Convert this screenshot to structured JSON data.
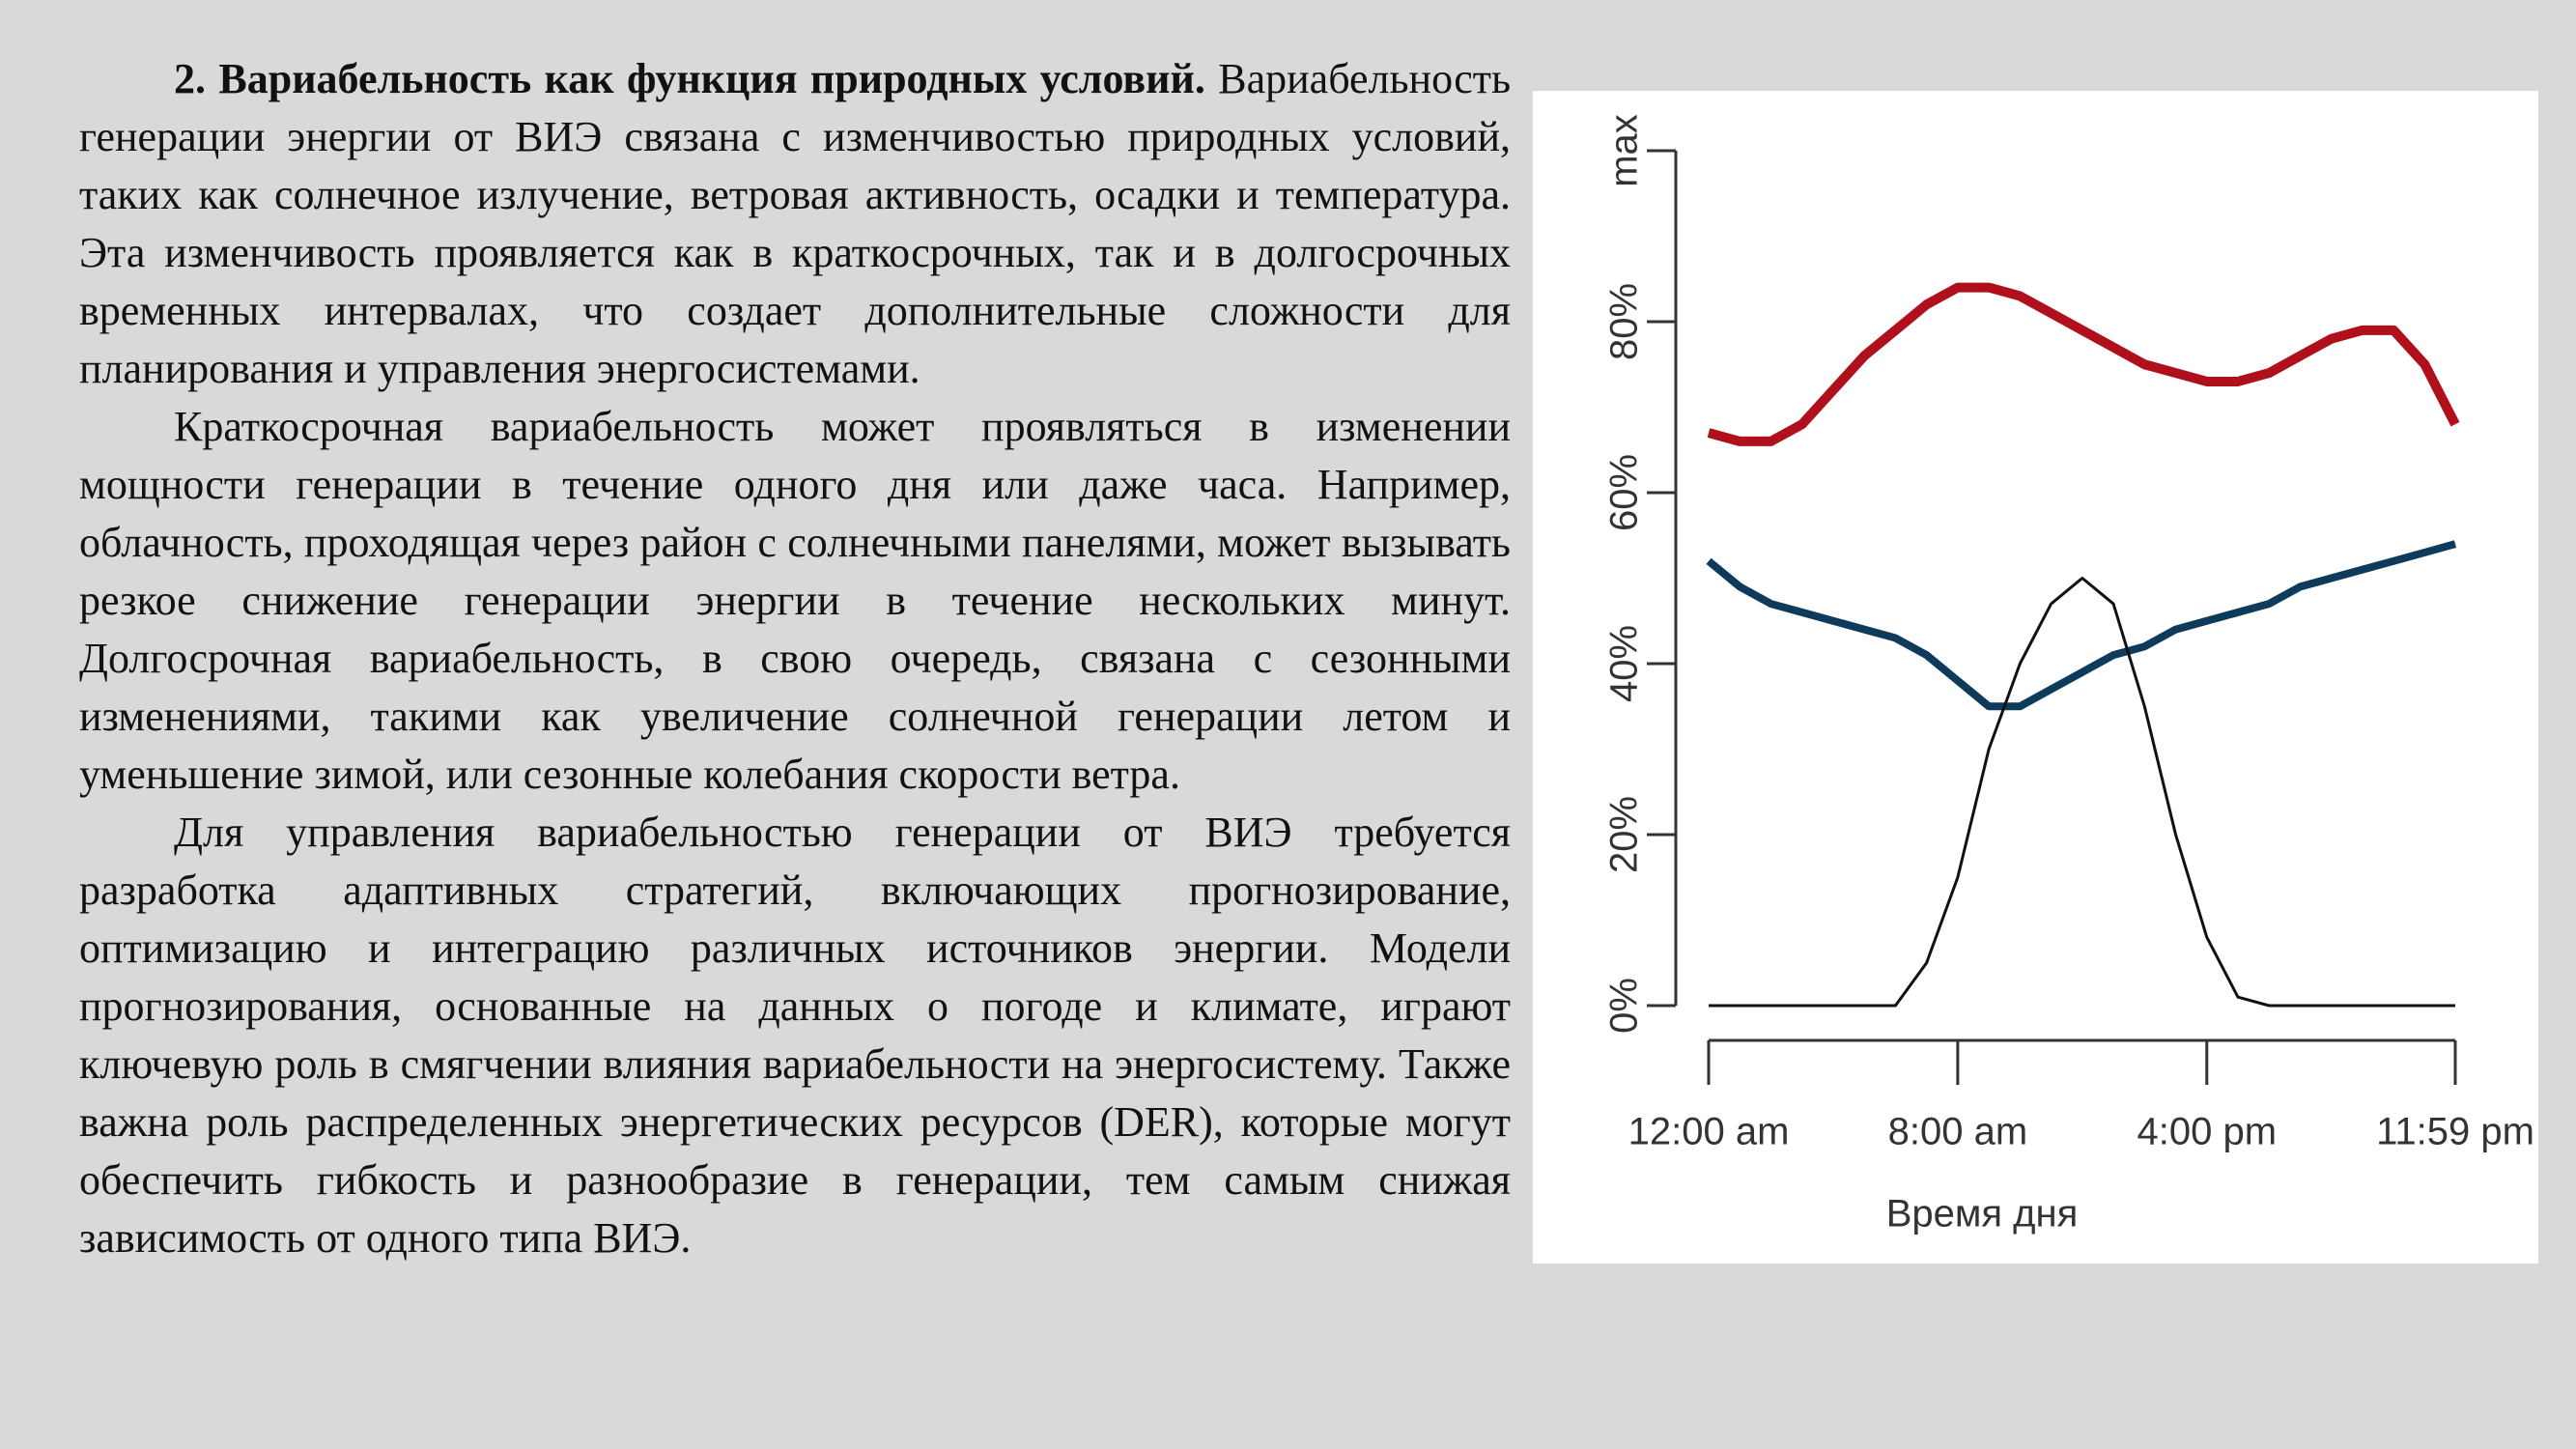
{
  "paragraphs": [
    {
      "heading": "2. Вариабельность как функция природных условий.",
      "text": "Вариабельность генерации энергии от ВИЭ связана с изменчивостью природных условий, таких как солнечное излучение, ветровая активность, осадки и температура. Эта изменчивость проявляется как в краткосрочных, так и в долгосрочных временных интервалах, что создает дополнительные сложности для планирования и управления энергосистемами."
    },
    {
      "text": "Краткосрочная вариабельность может проявляться в изменении мощности генерации в течение одного дня или даже часа. Например, облачность, проходящая через район с солнечными панелями, может вызывать резкое снижение генерации энергии в течение нескольких минут. Долгосрочная вариабельность, в свою очередь, связана с сезонными изменениями, такими как увеличение солнечной генерации летом и уменьшение зимой, или сезонные колебания скорости ветра."
    },
    {
      "text": "Для управления вариабельностью генерации от ВИЭ требуется разработка адаптивных стратегий, включающих прогнозирование, оптимизацию и интеграцию различных источников энергии. Модели прогнозирования, основанные на данных о погоде и климате, играют ключевую роль в смягчении влияния вариабельности на энергосистему. Также важна роль распределенных энергетических ресурсов (DER), которые могут обеспечить гибкость и разнообразие в генерации, тем самым снижая зависимость от одного типа ВИЭ."
    }
  ],
  "chart_data": {
    "type": "line",
    "x_label": "Время дня",
    "x": [
      0,
      1,
      2,
      3,
      4,
      5,
      6,
      7,
      8,
      9,
      10,
      11,
      12,
      13,
      14,
      15,
      16,
      17,
      18,
      19,
      20,
      21,
      22,
      23,
      23.98
    ],
    "series": [
      {
        "color": "#b0101c",
        "values": [
          67,
          66,
          66,
          68,
          72,
          76,
          79,
          82,
          84,
          84,
          83,
          81,
          79,
          77,
          75,
          74,
          73,
          73,
          74,
          76,
          78,
          79,
          79,
          75,
          68
        ]
      },
      {
        "color": "#0e3a5c",
        "values": [
          52,
          49,
          47,
          46,
          45,
          44,
          43,
          41,
          38,
          35,
          35,
          37,
          39,
          41,
          42,
          44,
          45,
          46,
          47,
          49,
          50,
          51,
          52,
          53,
          54
        ]
      },
      {
        "color": "#111111",
        "values": [
          0,
          0,
          0,
          0,
          0,
          0,
          0,
          5,
          15,
          30,
          40,
          47,
          50,
          47,
          35,
          20,
          8,
          1,
          0,
          0,
          0,
          0,
          0,
          0,
          0
        ]
      }
    ],
    "xlim": [
      0,
      23.98
    ],
    "xticks": [
      {
        "value": 0,
        "label": "12:00 am"
      },
      {
        "value": 8,
        "label": "8:00 am"
      },
      {
        "value": 16,
        "label": "4:00 pm"
      },
      {
        "value": 23.98,
        "label": "11:59 pm"
      }
    ],
    "ylim": [
      0,
      100
    ],
    "yticks": [
      {
        "value": 0,
        "label": "0%"
      },
      {
        "value": 20,
        "label": "20%"
      },
      {
        "value": 40,
        "label": "40%"
      },
      {
        "value": 60,
        "label": "60%"
      },
      {
        "value": 80,
        "label": "80%"
      },
      {
        "value": 100,
        "label": "max"
      }
    ]
  }
}
